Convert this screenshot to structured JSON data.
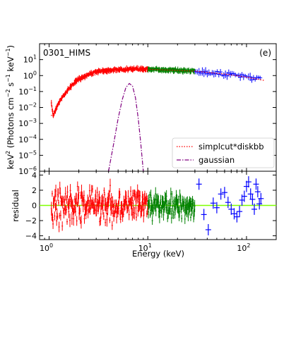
{
  "chart_data": [
    {
      "type": "scatter",
      "panel": "spectrum",
      "scale": {
        "x": "log",
        "y": "log"
      },
      "xlim": [
        0.8,
        200
      ],
      "ylim": [
        1e-06,
        100
      ],
      "ylabel_parts": {
        "a": "keV",
        "b": "2",
        "c": " (Photons cm",
        "d": "−2",
        "e": " s",
        "f": "−1",
        "g": " keV",
        "h": "−1",
        "i": ")"
      },
      "y_ticks": [
        {
          "value": 1e-06,
          "base": "10",
          "exp": "−6"
        },
        {
          "value": 1e-05,
          "base": "10",
          "exp": "−5"
        },
        {
          "value": 0.0001,
          "base": "10",
          "exp": "−4"
        },
        {
          "value": 0.001,
          "base": "10",
          "exp": "−3"
        },
        {
          "value": 0.01,
          "base": "10",
          "exp": "−2"
        },
        {
          "value": 0.1,
          "base": "10",
          "exp": "−1"
        },
        {
          "value": 1,
          "base": "10",
          "exp": "0"
        },
        {
          "value": 10,
          "base": "10",
          "exp": "1"
        }
      ],
      "annotations": [
        {
          "text": "0301_HIMS",
          "position": "top-left"
        },
        {
          "text": "(e)",
          "position": "top-right"
        }
      ],
      "legend": {
        "position": "lower-right",
        "entries": [
          {
            "label": "simplcut*diskbb",
            "color": "#ff0000",
            "style": "dotted"
          },
          {
            "label": "gaussian",
            "color": "#800080",
            "style": "dashdot"
          }
        ]
      },
      "series": [
        {
          "instrument": "low",
          "color": "#ff0000",
          "x": [
            1.05,
            1.1,
            1.2,
            1.3,
            1.5,
            1.7,
            2.0,
            2.5,
            3.0,
            4.0,
            5.0,
            6.0,
            7.0,
            8.0,
            9.0,
            10.0
          ],
          "y": [
            0.02,
            0.003,
            0.012,
            0.03,
            0.1,
            0.25,
            0.6,
            1.2,
            1.7,
            2.2,
            2.4,
            2.5,
            2.6,
            2.6,
            2.6,
            2.6
          ]
        },
        {
          "instrument": "mid",
          "color": "#008000",
          "x": [
            10,
            12,
            15,
            18,
            20,
            25,
            30
          ],
          "y": [
            2.5,
            2.4,
            2.3,
            2.2,
            2.1,
            2.0,
            1.9
          ]
        },
        {
          "instrument": "high",
          "color": "#0000ff",
          "x": [
            30,
            40,
            50,
            60,
            70,
            80,
            90,
            100,
            110,
            120,
            130,
            140
          ],
          "y": [
            1.8,
            1.6,
            1.4,
            1.25,
            1.1,
            1.0,
            0.9,
            0.8,
            0.7,
            0.6,
            0.8,
            0.5
          ]
        }
      ],
      "models": [
        {
          "name": "simplcut*diskbb",
          "color": "#ff0000",
          "x": [
            1.05,
            1.2,
            1.5,
            2.0,
            3.0,
            5.0,
            8.0,
            10,
            20,
            30,
            60,
            100,
            150
          ],
          "y": [
            0.003,
            0.012,
            0.1,
            0.6,
            1.7,
            2.4,
            2.6,
            2.5,
            2.1,
            1.9,
            1.25,
            0.8,
            0.5
          ]
        },
        {
          "name": "gaussian",
          "color": "#800080",
          "x": [
            4.0,
            4.5,
            5.0,
            5.5,
            6.0,
            6.5,
            7.0,
            7.5,
            8.0,
            8.5,
            9.0,
            9.3
          ],
          "y": [
            1e-06,
            5e-05,
            0.002,
            0.03,
            0.18,
            0.32,
            0.22,
            0.04,
            0.002,
            5e-05,
            1e-06,
            3e-07
          ]
        }
      ]
    },
    {
      "type": "scatter",
      "panel": "residual",
      "scale": {
        "x": "log",
        "y": "linear"
      },
      "xlim": [
        0.8,
        200
      ],
      "ylim": [
        -4.5,
        4.5
      ],
      "ylabel": "residual",
      "xlabel": "Energy (keV)",
      "y_ticks": [
        -4,
        -2,
        0,
        2,
        4
      ],
      "x_ticks": [
        {
          "value": 1,
          "base": "10",
          "exp": "0"
        },
        {
          "value": 10,
          "base": "10",
          "exp": "1"
        },
        {
          "value": 100,
          "base": "10",
          "exp": "2"
        }
      ],
      "zero_line_color": "#7fff00",
      "residual_spread": {
        "low": 2.2,
        "mid": 1.6
      },
      "series": [
        {
          "instrument": "high",
          "color": "#0000ff",
          "x": [
            33,
            37,
            41,
            46,
            50,
            55,
            60,
            65,
            70,
            75,
            80,
            85,
            90,
            95,
            100,
            105,
            110,
            115,
            120,
            125,
            130,
            135,
            140
          ],
          "y": [
            2.8,
            -1.2,
            -3.2,
            0.3,
            -0.3,
            1.5,
            1.7,
            0.4,
            -0.5,
            -1.1,
            -1.5,
            -0.8,
            0.7,
            1.2,
            2.5,
            3.1,
            1.5,
            0.8,
            -0.5,
            2.8,
            1.8,
            0.2,
            0.9
          ]
        }
      ]
    }
  ]
}
